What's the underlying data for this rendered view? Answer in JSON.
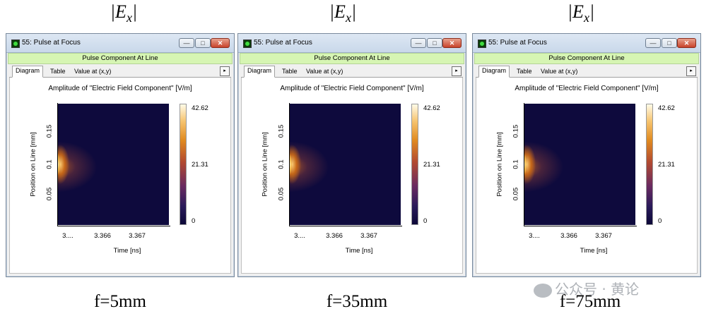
{
  "labels": {
    "top": [
      "|E",
      "|E",
      "|E"
    ],
    "top_sub": "x",
    "bottom": [
      "f=5mm",
      "f=35mm",
      "f=75mm"
    ]
  },
  "window": {
    "title": "55: Pulse at Focus",
    "subheader": "Pulse Component At Line",
    "tabs": [
      "Diagram",
      "Table",
      "Value at (x,y)"
    ],
    "plot_title": "Amplitude of \"Electric Field Component\"  [V/m]",
    "ylabel": "Position on Line [mm]",
    "xlabel": "Time [ns]",
    "yticks": [
      "0.15",
      "0.1",
      "0.05"
    ],
    "xticks": [
      "3....",
      "3.366",
      "3.367"
    ],
    "colorbar_labels": [
      "42.62",
      "21.31",
      "0"
    ],
    "buttons": {
      "minimize": "—",
      "maximize": "□",
      "close": "✕"
    },
    "tab_scroll": "▸"
  },
  "watermark": "公众号 · 黄论",
  "colors": {
    "subheader_bg": "#d6f5b3",
    "plot_bg": "#0e0a3d",
    "titlebar": "#c9d8ea"
  }
}
